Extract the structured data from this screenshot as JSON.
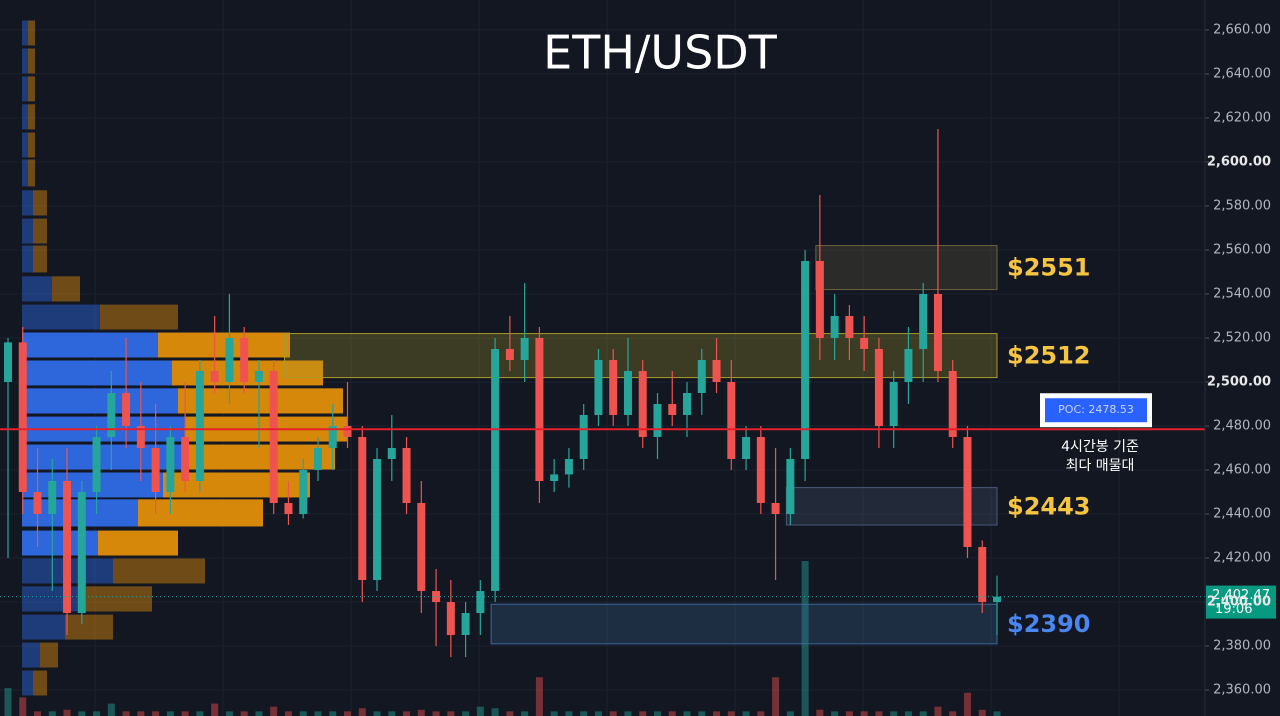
{
  "chart_data": {
    "type": "candlestick",
    "title": "ETH/USDT",
    "ylim": [
      2348.2,
      2673.6
    ],
    "yticks": [
      {
        "value": 2360,
        "label": "2,360.00"
      },
      {
        "value": 2380,
        "label": "2,380.00"
      },
      {
        "value": 2400,
        "label": "2,400.00"
      },
      {
        "value": 2420,
        "label": "2,420.00"
      },
      {
        "value": 2440,
        "label": "2,440.00"
      },
      {
        "value": 2460,
        "label": "2,460.00"
      },
      {
        "value": 2480,
        "label": "2,480.00"
      },
      {
        "value": 2500,
        "label": "2,500.00"
      },
      {
        "value": 2520,
        "label": "2,520.00"
      },
      {
        "value": 2540,
        "label": "2,540.00"
      },
      {
        "value": 2560,
        "label": "2,560.00"
      },
      {
        "value": 2580,
        "label": "2,580.00"
      },
      {
        "value": 2600,
        "label": "2,600.00"
      },
      {
        "value": 2620,
        "label": "2,620.00"
      },
      {
        "value": 2640,
        "label": "2,640.00"
      },
      {
        "value": 2660,
        "label": "2,660.00"
      }
    ],
    "grid": true,
    "up_color": "#26a69a",
    "down_color": "#ef5350",
    "candles": [
      [
        2500,
        2520,
        2420,
        2518
      ],
      [
        2518,
        2525,
        2440,
        2450
      ],
      [
        2450,
        2470,
        2425,
        2440
      ],
      [
        2440,
        2465,
        2405,
        2455
      ],
      [
        2455,
        2470,
        2385,
        2395
      ],
      [
        2395,
        2455,
        2390,
        2450
      ],
      [
        2450,
        2480,
        2440,
        2475
      ],
      [
        2475,
        2505,
        2460,
        2495
      ],
      [
        2495,
        2520,
        2470,
        2480
      ],
      [
        2480,
        2500,
        2455,
        2470
      ],
      [
        2470,
        2490,
        2440,
        2450
      ],
      [
        2450,
        2480,
        2440,
        2475
      ],
      [
        2475,
        2500,
        2450,
        2455
      ],
      [
        2455,
        2510,
        2450,
        2505
      ],
      [
        2505,
        2530,
        2495,
        2500
      ],
      [
        2500,
        2540,
        2490,
        2520
      ],
      [
        2520,
        2525,
        2495,
        2500
      ],
      [
        2500,
        2510,
        2470,
        2505
      ],
      [
        2505,
        2510,
        2440,
        2445
      ],
      [
        2445,
        2455,
        2435,
        2440
      ],
      [
        2440,
        2465,
        2438,
        2460
      ],
      [
        2460,
        2475,
        2455,
        2470
      ],
      [
        2470,
        2490,
        2460,
        2480
      ],
      [
        2480,
        2500,
        2470,
        2475
      ],
      [
        2475,
        2480,
        2400,
        2410
      ],
      [
        2410,
        2470,
        2405,
        2465
      ],
      [
        2465,
        2485,
        2455,
        2470
      ],
      [
        2470,
        2475,
        2440,
        2445
      ],
      [
        2445,
        2455,
        2395,
        2405
      ],
      [
        2405,
        2415,
        2380,
        2400
      ],
      [
        2400,
        2410,
        2375,
        2385
      ],
      [
        2385,
        2400,
        2375,
        2395
      ],
      [
        2395,
        2410,
        2385,
        2405
      ],
      [
        2405,
        2520,
        2400,
        2515
      ],
      [
        2515,
        2530,
        2505,
        2510
      ],
      [
        2510,
        2545,
        2500,
        2520
      ],
      [
        2520,
        2525,
        2445,
        2455
      ],
      [
        2455,
        2465,
        2450,
        2458
      ],
      [
        2458,
        2470,
        2452,
        2465
      ],
      [
        2465,
        2490,
        2460,
        2485
      ],
      [
        2485,
        2515,
        2480,
        2510
      ],
      [
        2510,
        2515,
        2480,
        2485
      ],
      [
        2485,
        2520,
        2480,
        2505
      ],
      [
        2505,
        2510,
        2470,
        2475
      ],
      [
        2475,
        2495,
        2465,
        2490
      ],
      [
        2490,
        2505,
        2480,
        2485
      ],
      [
        2485,
        2500,
        2475,
        2495
      ],
      [
        2495,
        2515,
        2485,
        2510
      ],
      [
        2510,
        2520,
        2495,
        2500
      ],
      [
        2500,
        2510,
        2460,
        2465
      ],
      [
        2465,
        2480,
        2460,
        2475
      ],
      [
        2475,
        2480,
        2440,
        2445
      ],
      [
        2445,
        2470,
        2410,
        2440
      ],
      [
        2440,
        2470,
        2435,
        2465
      ],
      [
        2465,
        2560,
        2455,
        2555
      ],
      [
        2555,
        2585,
        2510,
        2520
      ],
      [
        2520,
        2540,
        2510,
        2530
      ],
      [
        2530,
        2535,
        2510,
        2520
      ],
      [
        2520,
        2530,
        2505,
        2515
      ],
      [
        2515,
        2520,
        2470,
        2480
      ],
      [
        2480,
        2505,
        2470,
        2500
      ],
      [
        2500,
        2525,
        2490,
        2515
      ],
      [
        2515,
        2545,
        2500,
        2540
      ],
      [
        2540,
        2615,
        2500,
        2505
      ],
      [
        2505,
        2510,
        2470,
        2475
      ],
      [
        2475,
        2480,
        2420,
        2425
      ],
      [
        2425,
        2428,
        2395,
        2400
      ],
      [
        2400,
        2412,
        2385,
        2402.47
      ]
    ],
    "volume": [
      18,
      12,
      3,
      3,
      4,
      3,
      3,
      8,
      3,
      3,
      3,
      3,
      3,
      3,
      8,
      3,
      3,
      3,
      6,
      3,
      3,
      3,
      3,
      3,
      5,
      3,
      3,
      3,
      4,
      3,
      3,
      3,
      6,
      5,
      3,
      3,
      25,
      3,
      3,
      3,
      3,
      3,
      3,
      3,
      3,
      3,
      3,
      3,
      3,
      3,
      3,
      3,
      25,
      3,
      100,
      4,
      3,
      3,
      3,
      3,
      3,
      3,
      3,
      6,
      3,
      15,
      4,
      3
    ],
    "volume_profile": [
      {
        "price": 2658.6,
        "buy": 6,
        "sell": 7,
        "in_value_area": false
      },
      {
        "price": 2645.9,
        "buy": 6,
        "sell": 7,
        "in_value_area": false
      },
      {
        "price": 2633.2,
        "buy": 6,
        "sell": 7,
        "in_value_area": false
      },
      {
        "price": 2620.5,
        "buy": 6,
        "sell": 7,
        "in_value_area": false
      },
      {
        "price": 2607.7,
        "buy": 6,
        "sell": 7,
        "in_value_area": false
      },
      {
        "price": 2595.0,
        "buy": 6,
        "sell": 7,
        "in_value_area": false
      },
      {
        "price": 2581.4,
        "buy": 11,
        "sell": 14,
        "in_value_area": false
      },
      {
        "price": 2568.6,
        "buy": 11,
        "sell": 14,
        "in_value_area": false
      },
      {
        "price": 2555.9,
        "buy": 11,
        "sell": 14,
        "in_value_area": false
      },
      {
        "price": 2542.3,
        "buy": 30,
        "sell": 28,
        "in_value_area": false
      },
      {
        "price": 2529.5,
        "buy": 78,
        "sell": 78,
        "in_value_area": false
      },
      {
        "price": 2516.8,
        "buy": 136,
        "sell": 132,
        "in_value_area": true
      },
      {
        "price": 2504.1,
        "buy": 150,
        "sell": 151,
        "in_value_area": true
      },
      {
        "price": 2491.4,
        "buy": 156,
        "sell": 165,
        "in_value_area": true
      },
      {
        "price": 2478.6,
        "buy": 163,
        "sell": 162,
        "in_value_area": true
      },
      {
        "price": 2465.9,
        "buy": 163,
        "sell": 150,
        "in_value_area": true
      },
      {
        "price": 2453.2,
        "buy": 141,
        "sell": 147,
        "in_value_area": true
      },
      {
        "price": 2440.5,
        "buy": 116,
        "sell": 125,
        "in_value_area": true
      },
      {
        "price": 2426.8,
        "buy": 76,
        "sell": 80,
        "in_value_area": true
      },
      {
        "price": 2414.1,
        "buy": 91,
        "sell": 92,
        "in_value_area": false
      },
      {
        "price": 2401.4,
        "buy": 64,
        "sell": 66,
        "in_value_area": false
      },
      {
        "price": 2388.6,
        "buy": 43,
        "sell": 48,
        "in_value_area": false
      },
      {
        "price": 2375.9,
        "buy": 18,
        "sell": 18,
        "in_value_area": false
      },
      {
        "price": 2363.2,
        "buy": 11,
        "sell": 14,
        "in_value_area": false
      }
    ],
    "profile_colors": {
      "buy": "#2f6ae6",
      "sell": "#e08e0b"
    },
    "zones": [
      {
        "label": "$2551",
        "low": 2542,
        "high": 2562,
        "start": 55,
        "color": "#f5c542",
        "fill": "#6b6440"
      },
      {
        "label": "$2512",
        "low": 2502,
        "high": 2522,
        "start": 19,
        "color": "#f5c542",
        "fill": "#a89a2c"
      },
      {
        "label": "$2443",
        "low": 2435,
        "high": 2452,
        "start": 53,
        "color": "#f5c542",
        "fill": "#4a5a78"
      },
      {
        "label": "$2390",
        "low": 2381,
        "high": 2399,
        "start": 33,
        "color": "#4a86f0",
        "fill": "#3a6a9a"
      }
    ],
    "poc": {
      "value": 2478.53,
      "label": "POC: 2478.53",
      "color": "#e5202a"
    },
    "annotation": [
      "4시간봉 기준",
      "최다 매물대"
    ],
    "last_price": {
      "value": 2402.47,
      "label": "2,402.47"
    },
    "countdown": "19:06"
  }
}
